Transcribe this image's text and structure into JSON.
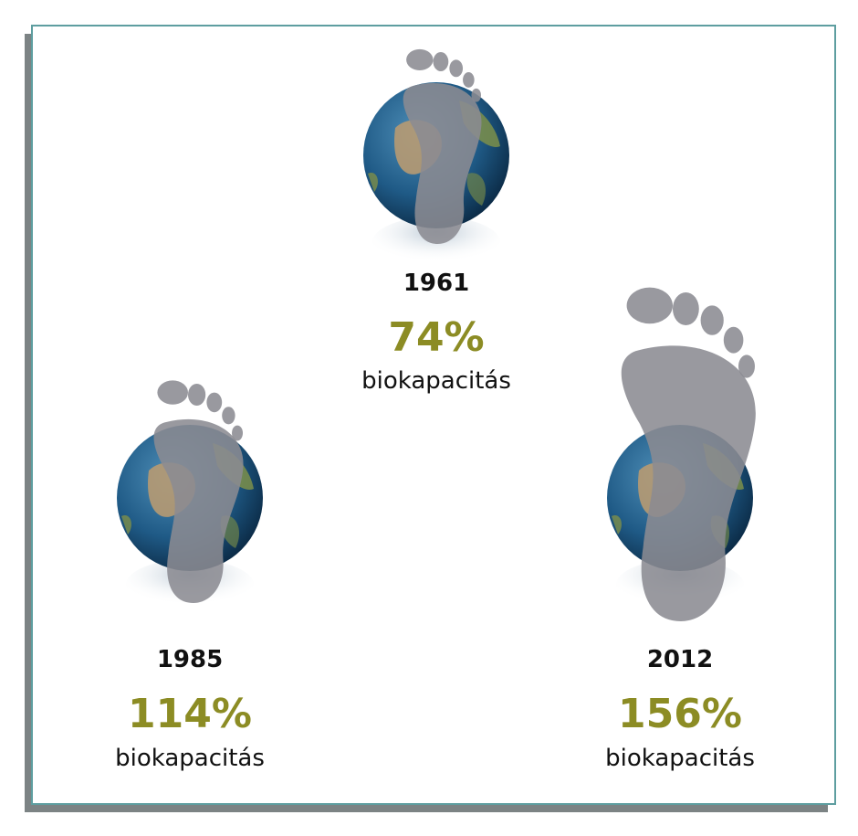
{
  "items": [
    {
      "year": "1961",
      "value": "74%",
      "label": "biokapacitás"
    },
    {
      "year": "1985",
      "value": "114%",
      "label": "biokapacitás"
    },
    {
      "year": "2012",
      "value": "156%",
      "label": "biokapacitás"
    }
  ]
}
